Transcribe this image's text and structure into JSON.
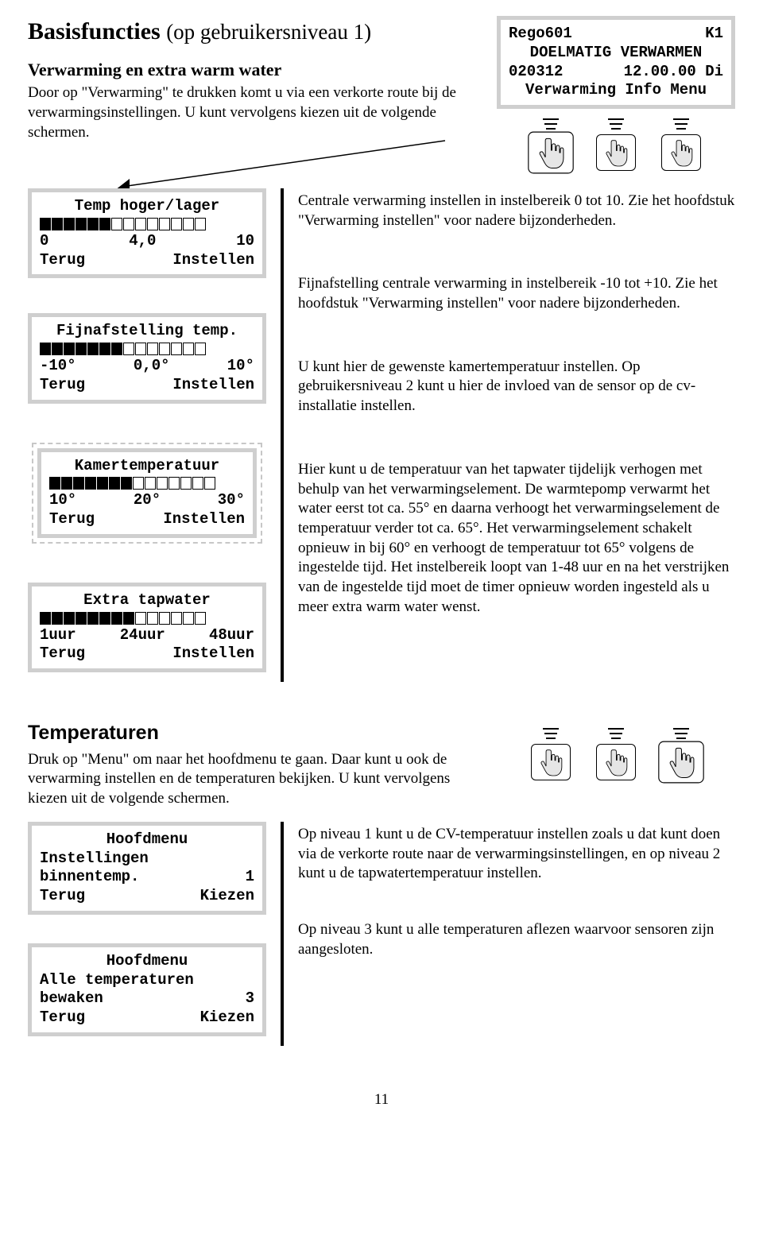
{
  "title_main": "Basisfuncties",
  "title_paren": "(op gebruikersniveau 1)",
  "subhead": "Verwarming en extra warm water",
  "intro": "Door op \"Verwarming\" te drukken komt u via een verkorte route bij de verwarmingsinstellingen. U kunt vervolgens kiezen uit de volgende schermen.",
  "lcd_top": {
    "l1_left": "Rego601",
    "l1_right": "K1",
    "l2": "DOELMATIG VERWARMEN",
    "l3_left": "020312",
    "l3_right": "12.00.00 Di",
    "l4": "Verwarming Info Menu"
  },
  "panels": [
    {
      "title": "Temp hoger/lager",
      "fill": 6,
      "total": 14,
      "min": "0",
      "mid": "4,0",
      "max": "10",
      "b1": "Terug",
      "b2": "Instellen",
      "desc": "Centrale verwarming instellen in instelbereik 0 tot 10. Zie het hoofdstuk \"Verwarming instellen\" voor nadere bijzonderheden."
    },
    {
      "title": "Fijnafstelling temp.",
      "fill": 7,
      "total": 14,
      "min": "-10°",
      "mid": "0,0°",
      "max": "10°",
      "b1": "Terug",
      "b2": "Instellen",
      "desc": "Fijnafstelling centrale verwarming in instelbereik -10 tot +10. Zie het hoofdstuk \"Verwarming instellen\" voor nadere bijzonderheden."
    },
    {
      "title": "Kamertemperatuur",
      "fill": 7,
      "total": 14,
      "min": "10°",
      "mid": "20°",
      "max": "30°",
      "b1": "Terug",
      "b2": "Instellen",
      "dashed": true,
      "desc": "U kunt hier de gewenste kamertemperatuur instellen. Op gebruikersniveau 2 kunt u hier de invloed van de sensor op de cv-installatie instellen."
    },
    {
      "title": "Extra tapwater",
      "fill": 8,
      "total": 14,
      "min": "1uur",
      "mid": "24uur",
      "max": "48uur",
      "b1": "Terug",
      "b2": "Instellen",
      "desc": "Hier kunt u de temperatuur van het tapwater tijdelijk verhogen met behulp van het verwarmingselement. De warmtepomp verwarmt het water eerst tot ca. 55° en daarna verhoogt het verwarmingselement de temperatuur verder tot ca. 65°. Het verwarmingselement schakelt opnieuw in bij 60° en verhoogt de temperatuur tot 65° volgens de ingestelde tijd. Het instelbereik loopt van 1-48 uur en na het verstrijken van de ingestelde tijd moet de timer opnieuw worden ingesteld als u meer extra warm water wenst."
    }
  ],
  "temp_heading": "Temperaturen",
  "temp_intro": "Druk op \"Menu\" om naar het hoofdmenu te gaan. Daar kunt u ook de verwarming instellen en de temperaturen bekijken. U kunt vervolgens kiezen uit de volgende schermen.",
  "temp_panels": [
    {
      "l1": "Hoofdmenu",
      "l2": "Instellingen",
      "l3_left": "binnentemp.",
      "l3_right": "1",
      "b1": "Terug",
      "b2": "Kiezen",
      "desc": "Op niveau 1 kunt u de CV-temperatuur instellen zoals u dat kunt doen via de verkorte route naar de verwarmingsinstellingen, en op niveau 2 kunt u de tapwatertemperatuur instellen."
    },
    {
      "l1": "Hoofdmenu",
      "l2": "Alle temperaturen",
      "l3_left": "bewaken",
      "l3_right": "3",
      "b1": "Terug",
      "b2": "Kiezen",
      "desc": "Op niveau 3 kunt u alle temperaturen aflezen waarvoor sensoren zijn aangesloten."
    }
  ],
  "page_number": "11"
}
